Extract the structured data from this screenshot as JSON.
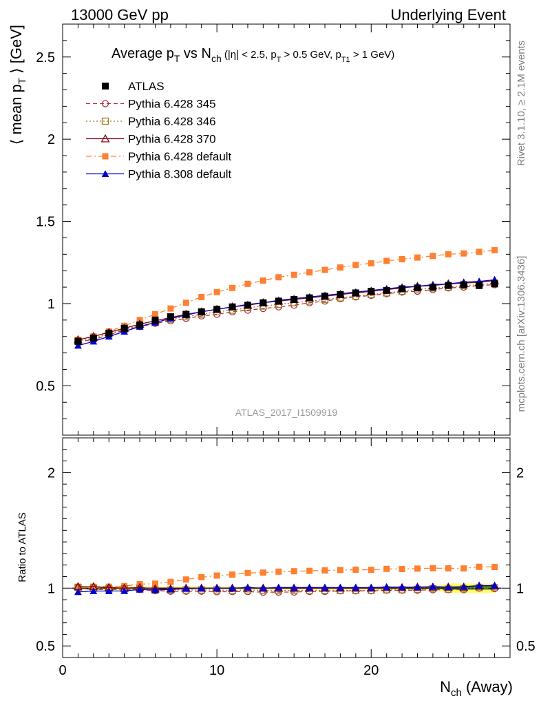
{
  "header": {
    "left": "13000 GeV pp",
    "right": "Underlying Event"
  },
  "title": {
    "main": "Average p",
    "main_sub": "T",
    "vs": " vs N",
    "vs_sub": "ch",
    "cuts_1": " (|η| < 2.5, p",
    "cuts_1_sub": "T",
    "cuts_2": " > 0.5 GeV, p",
    "cuts_2_sub": "T1",
    "cuts_3": " > 1 GeV)"
  },
  "side_text": {
    "rivet": "Rivet 3.1.10, ≥ 2.1M events",
    "mcplots": "mcplots.cern.ch [arXiv:1306.3436]"
  },
  "watermark": "ATLAS_2017_I1509919",
  "ylabel": {
    "pre": "⟨ mean p",
    "sub": "T",
    "post": " ⟩ [GeV]"
  },
  "ratio_ylabel": "Ratio to ATLAS",
  "xlabel": {
    "main": "N",
    "sub": "ch",
    "post": " (Away)"
  },
  "colors": {
    "atlas": "#000000",
    "p345": "#b03040",
    "p346": "#a07820",
    "p370": "#800010",
    "p6def": "#ff8030",
    "p8def": "#0000cc",
    "band_green": "#33cc33",
    "band_yellow": "#ffff66"
  },
  "chart_data": {
    "type": "line",
    "x": [
      1,
      2,
      3,
      4,
      5,
      6,
      7,
      8,
      9,
      10,
      11,
      12,
      13,
      14,
      15,
      16,
      17,
      18,
      19,
      20,
      21,
      22,
      23,
      24,
      25,
      26,
      27,
      28
    ],
    "xlim": [
      0,
      29
    ],
    "xticks": [
      0,
      10,
      20
    ],
    "main_ylim": [
      0.2,
      2.7
    ],
    "main_yticks": [
      0.5,
      1,
      1.5,
      2,
      2.5
    ],
    "main_ytick_labels": [
      "0.5",
      "1",
      "1.5",
      "2",
      "2.5"
    ],
    "ratio_ylim": [
      0.4,
      2.3
    ],
    "ratio_yticks": [
      0.5,
      1,
      2
    ],
    "ratio_ytick_labels": [
      "0.5",
      "1",
      "2"
    ],
    "legend_position": "top-left",
    "series": [
      {
        "name": "ATLAS",
        "key": "atlas",
        "marker": "filled-square",
        "line": "none",
        "values": [
          0.77,
          0.79,
          0.82,
          0.85,
          0.87,
          0.9,
          0.92,
          0.935,
          0.95,
          0.965,
          0.98,
          0.99,
          1.005,
          1.015,
          1.025,
          1.035,
          1.045,
          1.055,
          1.065,
          1.075,
          1.08,
          1.09,
          1.095,
          1.1,
          1.11,
          1.115,
          1.11,
          1.12
        ]
      },
      {
        "name": "Pythia 6.428 345",
        "key": "p345",
        "marker": "open-circle",
        "line": "dashed",
        "values": [
          0.77,
          0.78,
          0.81,
          0.84,
          0.86,
          0.88,
          0.895,
          0.91,
          0.925,
          0.935,
          0.95,
          0.96,
          0.97,
          0.98,
          0.99,
          1.005,
          1.015,
          1.03,
          1.04,
          1.05,
          1.06,
          1.07,
          1.075,
          1.085,
          1.095,
          1.1,
          1.11,
          1.115
        ]
      },
      {
        "name": "Pythia 6.428 346",
        "key": "p346",
        "marker": "open-square",
        "line": "dotted",
        "values": [
          0.775,
          0.79,
          0.815,
          0.845,
          0.865,
          0.885,
          0.905,
          0.92,
          0.935,
          0.95,
          0.96,
          0.975,
          0.985,
          0.995,
          1.005,
          1.015,
          1.025,
          1.035,
          1.045,
          1.055,
          1.065,
          1.075,
          1.085,
          1.095,
          1.1,
          1.11,
          1.115,
          1.125
        ]
      },
      {
        "name": "Pythia 6.428 370",
        "key": "p370",
        "marker": "open-triangle",
        "line": "solid",
        "values": [
          0.78,
          0.8,
          0.825,
          0.85,
          0.875,
          0.895,
          0.915,
          0.935,
          0.95,
          0.965,
          0.98,
          0.99,
          1.005,
          1.015,
          1.025,
          1.035,
          1.045,
          1.055,
          1.065,
          1.075,
          1.085,
          1.095,
          1.105,
          1.11,
          1.12,
          1.125,
          1.13,
          1.14
        ]
      },
      {
        "name": "Pythia 6.428 default",
        "key": "p6def",
        "marker": "filled-square",
        "line": "dash-dot",
        "values": [
          0.78,
          0.8,
          0.83,
          0.865,
          0.9,
          0.935,
          0.97,
          1.005,
          1.04,
          1.07,
          1.095,
          1.12,
          1.14,
          1.16,
          1.175,
          1.19,
          1.205,
          1.22,
          1.235,
          1.245,
          1.26,
          1.27,
          1.28,
          1.29,
          1.3,
          1.305,
          1.315,
          1.325
        ]
      },
      {
        "name": "Pythia 8.308 default",
        "key": "p8def",
        "marker": "filled-triangle",
        "line": "solid",
        "values": [
          0.745,
          0.77,
          0.8,
          0.83,
          0.86,
          0.885,
          0.91,
          0.93,
          0.95,
          0.965,
          0.98,
          0.995,
          1.005,
          1.02,
          1.03,
          1.04,
          1.05,
          1.06,
          1.07,
          1.08,
          1.09,
          1.1,
          1.105,
          1.115,
          1.12,
          1.13,
          1.135,
          1.145
        ]
      }
    ]
  }
}
